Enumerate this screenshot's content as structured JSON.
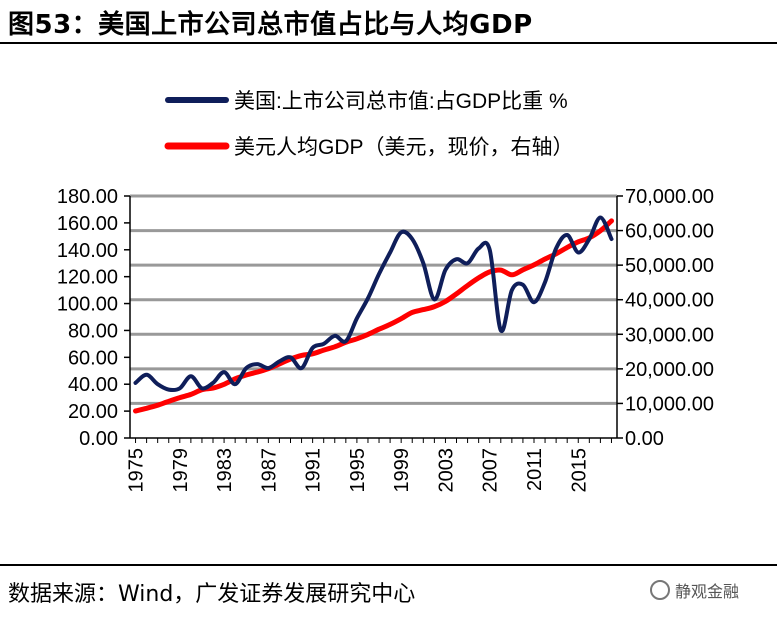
{
  "figure": {
    "title": "图53：美国上市公司总市值占比与人均GDP",
    "source": "数据来源：Wind，广发证券发展研究中心",
    "watermark": "静观金融"
  },
  "colors": {
    "series_market_cap": "#0f1e5a",
    "series_gdp": "#ff0000",
    "grid": "#999999"
  },
  "chart_data": {
    "type": "line",
    "grid": true,
    "legend_placement": "top-left",
    "x": [
      1975,
      1976,
      1977,
      1978,
      1979,
      1980,
      1981,
      1982,
      1983,
      1984,
      1985,
      1986,
      1987,
      1988,
      1989,
      1990,
      1991,
      1992,
      1993,
      1994,
      1995,
      1996,
      1997,
      1998,
      1999,
      2000,
      2001,
      2002,
      2003,
      2004,
      2005,
      2006,
      2007,
      2008,
      2009,
      2010,
      2011,
      2012,
      2013,
      2014,
      2015,
      2016,
      2017,
      2018
    ],
    "x_tick_labels": [
      "1975",
      "1979",
      "1983",
      "1987",
      "1991",
      "1995",
      "1999",
      "2003",
      "2007",
      "2011",
      "2015"
    ],
    "y_left": {
      "ylim": [
        0,
        180
      ],
      "tick_labels": [
        "0.00",
        "20.00",
        "40.00",
        "60.00",
        "80.00",
        "100.00",
        "120.00",
        "140.00",
        "160.00",
        "180.00"
      ]
    },
    "y_right": {
      "ylim": [
        0,
        70000
      ],
      "tick_labels": [
        "0.00",
        "10,000.00",
        "20,000.00",
        "30,000.00",
        "40,000.00",
        "50,000.00",
        "60,000.00",
        "70,000.00"
      ]
    },
    "series": [
      {
        "name": "美国:上市公司总市值:占GDP比重 %",
        "axis": "left",
        "values": [
          41,
          47,
          40,
          36,
          37,
          46,
          37,
          41,
          49,
          40,
          52,
          55,
          52,
          57,
          60,
          52,
          67,
          70,
          76,
          72,
          89,
          104,
          122,
          138,
          153,
          148,
          130,
          103,
          125,
          133,
          130,
          141,
          140,
          80,
          110,
          114,
          101,
          116,
          141,
          151,
          138,
          148,
          164,
          148
        ]
      },
      {
        "name": "美元人均GDP（美元，现价，右轴）",
        "axis": "right",
        "values": [
          7800,
          8600,
          9500,
          10600,
          11700,
          12600,
          13976,
          14434,
          15544,
          17121,
          18237,
          19071,
          20039,
          21417,
          22857,
          23889,
          24342,
          25419,
          26387,
          27695,
          28691,
          29968,
          31459,
          32854,
          34516,
          36330,
          37134,
          37998,
          39490,
          41725,
          44123,
          46302,
          48050,
          48570,
          47195,
          48651,
          50066,
          51785,
          53292,
          55124,
          56763,
          57904,
          59958,
          62806
        ]
      }
    ]
  }
}
